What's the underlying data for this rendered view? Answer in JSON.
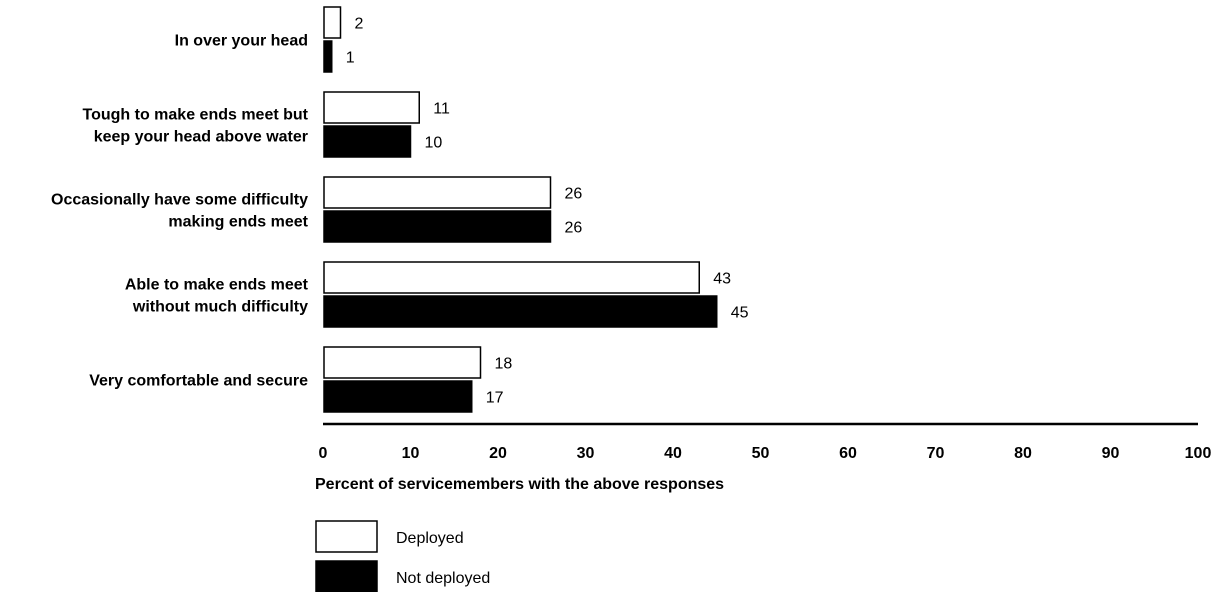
{
  "chart_data": {
    "type": "bar",
    "orientation": "horizontal",
    "categories": [
      [
        "In over your head"
      ],
      [
        "Tough to make ends meet but",
        "keep your head above water"
      ],
      [
        "Occasionally have some difficulty",
        "making ends meet"
      ],
      [
        "Able to make ends meet",
        "without much difficulty"
      ],
      [
        "Very comfortable and secure"
      ]
    ],
    "series": [
      {
        "name": "Deployed",
        "values": [
          2,
          11,
          26,
          43,
          18
        ],
        "color": "#ffffff"
      },
      {
        "name": "Not deployed",
        "values": [
          1,
          10,
          26,
          45,
          17
        ],
        "color": "#000000"
      }
    ],
    "xlabel": "Percent of servicemembers with the above responses",
    "xlim": [
      0,
      100
    ],
    "xticks": [
      0,
      10,
      20,
      30,
      40,
      50,
      60,
      70,
      80,
      90,
      100
    ],
    "grid": false,
    "legend_position": "bottom-left"
  }
}
